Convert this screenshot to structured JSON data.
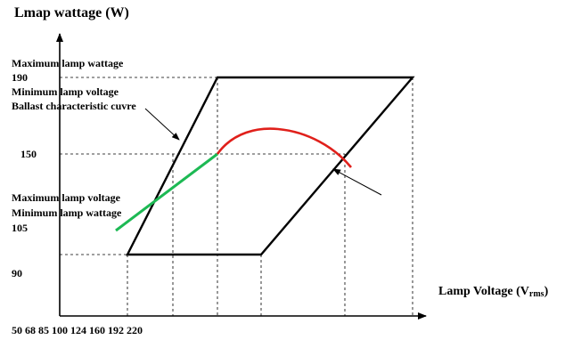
{
  "y_axis_title": "Lmap wattage (W)",
  "x_axis_title": {
    "main": "Lamp Voltage (V",
    "subscript": "rms",
    "close": ")"
  },
  "y_ticks": {
    "t190": "190",
    "t150": "150",
    "t105": "105",
    "t90": "90"
  },
  "x_ticks_row": "50 68 85 100 124 160 192 220",
  "annotations": {
    "max_wattage": "Maximum lamp wattage",
    "min_voltage_1": "Minimum lamp voltage",
    "ballast_curve": "Ballast characteristic cuvre",
    "max_voltage": "Maximum lamp voltage",
    "min_wattage": "Minimum lamp wattage"
  },
  "colors": {
    "boundary": "#000000",
    "guide": "#000000",
    "ballast_line": "#1db954",
    "operating_arc": "#e0201b"
  }
}
